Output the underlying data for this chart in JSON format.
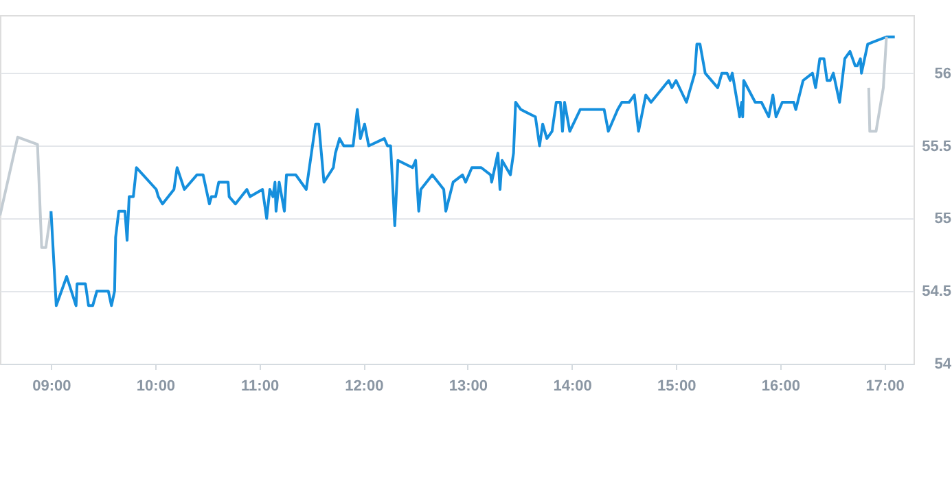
{
  "chart_data": {
    "type": "line",
    "xlim": [
      8.51,
      17.28
    ],
    "ylim": [
      54,
      56.4
    ],
    "xticks": [
      {
        "value": 9,
        "label": "09:00"
      },
      {
        "value": 10,
        "label": "10:00"
      },
      {
        "value": 11,
        "label": "11:00"
      },
      {
        "value": 12,
        "label": "12:00"
      },
      {
        "value": 13,
        "label": "13:00"
      },
      {
        "value": 14,
        "label": "14:00"
      },
      {
        "value": 15,
        "label": "15:00"
      },
      {
        "value": 16,
        "label": "16:00"
      },
      {
        "value": 17,
        "label": "17:00"
      }
    ],
    "yticks": [
      54,
      54.5,
      55,
      55.5,
      56
    ],
    "grid": "y",
    "marker": "none",
    "line_style": "solid",
    "series": [
      {
        "color": "#c3ccd3",
        "x": [
          8.51,
          8.68,
          8.87,
          8.91,
          8.95,
          9.0
        ],
        "values": [
          55.02,
          55.56,
          55.51,
          54.8,
          54.8,
          55.05
        ]
      },
      {
        "color": "#158fdd",
        "x": [
          9.0,
          9.05,
          9.15,
          9.24,
          9.25,
          9.33,
          9.36,
          9.4,
          9.44,
          9.55,
          9.58,
          9.61,
          9.62,
          9.65,
          9.71,
          9.73,
          9.75,
          9.79,
          9.82,
          10.01,
          10.03,
          10.07,
          10.18,
          10.21,
          10.28,
          10.4,
          10.46,
          10.52,
          10.54,
          10.58,
          10.61,
          10.7,
          10.71,
          10.77,
          10.88,
          10.91,
          11.03,
          11.07,
          11.1,
          11.13,
          11.15,
          11.16,
          11.19,
          11.24,
          11.26,
          11.35,
          11.45,
          11.5,
          11.54,
          11.57,
          11.62,
          11.71,
          11.73,
          11.77,
          11.81,
          11.9,
          11.94,
          11.97,
          12.01,
          12.05,
          12.2,
          12.23,
          12.26,
          12.3,
          12.33,
          12.47,
          12.5,
          12.53,
          12.55,
          12.66,
          12.77,
          12.79,
          12.86,
          12.95,
          12.98,
          13.04,
          13.13,
          13.22,
          13.23,
          13.29,
          13.31,
          13.33,
          13.41,
          13.44,
          13.46,
          13.51,
          13.65,
          13.69,
          13.72,
          13.76,
          13.81,
          13.85,
          13.89,
          13.91,
          13.93,
          13.98,
          14.08,
          14.31,
          14.35,
          14.44,
          14.48,
          14.55,
          14.6,
          14.64,
          14.71,
          14.76,
          14.93,
          14.96,
          15.0,
          15.1,
          15.18,
          15.2,
          15.23,
          15.28,
          15.4,
          15.44,
          15.49,
          15.52,
          15.54,
          15.6,
          15.61,
          15.63,
          15.64,
          15.65,
          15.76,
          15.82,
          15.89,
          15.93,
          15.96,
          16.02,
          16.13,
          16.15,
          16.22,
          16.31,
          16.34,
          16.38,
          16.42,
          16.45,
          16.48,
          16.51,
          16.57,
          16.62,
          16.67,
          16.72,
          16.74,
          16.77,
          16.78,
          16.81,
          16.84,
          17.02,
          17.1
        ],
        "values": [
          55.05,
          54.4,
          54.6,
          54.4,
          54.55,
          54.55,
          54.4,
          54.4,
          54.5,
          54.5,
          54.4,
          54.5,
          54.87,
          55.05,
          55.05,
          54.85,
          55.15,
          55.15,
          55.35,
          55.2,
          55.15,
          55.1,
          55.2,
          55.35,
          55.2,
          55.3,
          55.3,
          55.1,
          55.15,
          55.15,
          55.25,
          55.25,
          55.15,
          55.1,
          55.2,
          55.15,
          55.2,
          55.0,
          55.2,
          55.15,
          55.25,
          55.05,
          55.25,
          55.05,
          55.3,
          55.3,
          55.2,
          55.45,
          55.65,
          55.65,
          55.25,
          55.35,
          55.45,
          55.55,
          55.5,
          55.5,
          55.75,
          55.55,
          55.65,
          55.5,
          55.55,
          55.5,
          55.5,
          54.95,
          55.4,
          55.35,
          55.4,
          55.05,
          55.2,
          55.3,
          55.2,
          55.05,
          55.25,
          55.3,
          55.25,
          55.35,
          55.35,
          55.3,
          55.25,
          55.45,
          55.2,
          55.4,
          55.3,
          55.45,
          55.8,
          55.75,
          55.7,
          55.5,
          55.65,
          55.55,
          55.6,
          55.8,
          55.8,
          55.6,
          55.8,
          55.6,
          55.75,
          55.75,
          55.6,
          55.75,
          55.8,
          55.8,
          55.85,
          55.6,
          55.85,
          55.8,
          55.95,
          55.9,
          55.95,
          55.8,
          56.0,
          56.2,
          56.2,
          56.0,
          55.9,
          56.0,
          56.0,
          55.95,
          56.0,
          55.75,
          55.7,
          55.8,
          55.7,
          55.95,
          55.8,
          55.8,
          55.7,
          55.85,
          55.7,
          55.8,
          55.8,
          55.75,
          55.95,
          56.0,
          55.9,
          56.1,
          56.1,
          55.95,
          55.95,
          56.0,
          55.8,
          56.1,
          56.15,
          56.05,
          56.05,
          56.1,
          56.0,
          56.1,
          56.2,
          56.25,
          56.25
        ]
      },
      {
        "color": "#c3ccd3",
        "x": [
          16.85,
          16.86,
          16.92,
          16.99,
          17.02
        ],
        "values": [
          55.9,
          55.6,
          55.6,
          55.9,
          56.25
        ]
      }
    ]
  }
}
